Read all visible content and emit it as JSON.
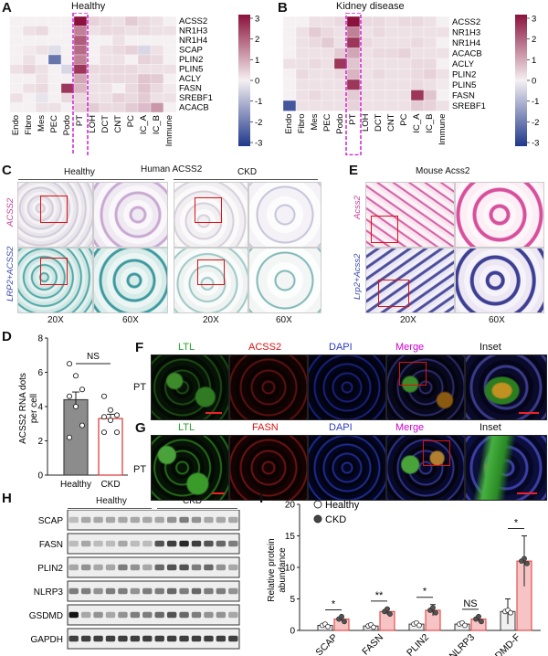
{
  "panelA": {
    "label": "A",
    "title": "Healthy",
    "rows": [
      "ACSS2",
      "NR1H3",
      "NR1H4",
      "SCAP",
      "PLIN2",
      "PLIN5",
      "ACLY",
      "FASN",
      "SREBF1",
      "ACACB"
    ],
    "cols": [
      "Endo",
      "Fibro",
      "Mes",
      "PEC",
      "Podo",
      "PT",
      "LOH",
      "DCT",
      "CNT",
      "PC",
      "IC_A",
      "IC_B",
      "Immune"
    ],
    "values": [
      [
        0,
        0,
        0,
        0,
        0,
        3,
        0.4,
        0.3,
        0.2,
        0.5,
        0.3,
        0.2,
        0
      ],
      [
        0,
        0.2,
        0.3,
        0,
        0,
        1.5,
        0.2,
        0.3,
        0.3,
        0.2,
        0.3,
        0.2,
        0.2
      ],
      [
        0,
        0,
        0,
        0,
        0,
        2,
        0,
        0,
        0.2,
        0,
        0,
        0,
        0
      ],
      [
        0,
        0.1,
        0.2,
        -0.3,
        0,
        1.8,
        0,
        0.2,
        0.3,
        0.4,
        -0.4,
        0.2,
        0
      ],
      [
        0,
        0.2,
        0,
        -2,
        0,
        1.5,
        0,
        0.2,
        0.2,
        0,
        0.4,
        0.3,
        0
      ],
      [
        0.2,
        0.4,
        0.2,
        0,
        -0.4,
        2.5,
        0.3,
        0.3,
        0.3,
        0.3,
        0.2,
        0.2,
        0.2
      ],
      [
        0,
        0,
        0.2,
        0,
        0,
        1,
        0.2,
        0.3,
        0.3,
        0.3,
        0.6,
        0.5,
        0
      ],
      [
        0,
        0.2,
        0.3,
        0,
        2.5,
        0.8,
        0.2,
        0.2,
        0,
        0.3,
        0.6,
        0.3,
        0.1
      ],
      [
        0.2,
        0,
        -0.2,
        0,
        0.3,
        0.3,
        0.2,
        0.2,
        0.4,
        0.3,
        0.5,
        0.2,
        0.2
      ],
      [
        0,
        0,
        0.2,
        0.2,
        0,
        0.4,
        0.5,
        0.3,
        0.3,
        0.5,
        0.7,
        1.2,
        0
      ]
    ],
    "scale_ticks": [
      "3",
      "2",
      "1",
      "0",
      "-1",
      "-2",
      "-3"
    ]
  },
  "panelB": {
    "label": "B",
    "title": "Kidney disease",
    "rows": [
      "ACSS2",
      "NR1H3",
      "NR1H4",
      "ACACB",
      "ACLY",
      "PLIN2",
      "PLIN5",
      "FASN",
      "SREBF1"
    ],
    "cols": [
      "Endo",
      "Fibro",
      "Mes",
      "PEC",
      "Podo",
      "PT",
      "LOH",
      "DCT",
      "CNT",
      "PC",
      "IC_A",
      "IC_B",
      "Immune"
    ],
    "values": [
      [
        0,
        0,
        0.2,
        0.2,
        0.3,
        3,
        0.3,
        0.3,
        0.2,
        0.3,
        0.3,
        0.2,
        0
      ],
      [
        0,
        0.2,
        0.5,
        0.3,
        0.2,
        1.5,
        0.2,
        0.3,
        0.2,
        0.2,
        0.2,
        0.2,
        0.2
      ],
      [
        0,
        0.2,
        0.3,
        0.5,
        0.2,
        2.5,
        0.3,
        0.2,
        0.2,
        0.2,
        0.3,
        0.2,
        0
      ],
      [
        0,
        0.2,
        0.2,
        0.2,
        0.5,
        1,
        0.2,
        0.3,
        0.3,
        0.4,
        0.2,
        0.2,
        0.2
      ],
      [
        0.2,
        0.2,
        0.3,
        0.2,
        2.5,
        0.6,
        0.2,
        0.2,
        0.2,
        0.2,
        0.3,
        0.3,
        0
      ],
      [
        0,
        0.3,
        0.2,
        0.2,
        0.3,
        0.8,
        0.2,
        0.3,
        0.2,
        0.2,
        0.3,
        0.4,
        0.2
      ],
      [
        0,
        0.2,
        0.2,
        0.2,
        0.2,
        2.5,
        0.2,
        0.2,
        0.2,
        0.2,
        0.3,
        0.2,
        0.1
      ],
      [
        0,
        0.2,
        0.3,
        0.2,
        0.2,
        0.5,
        0.2,
        0.2,
        0.2,
        0.2,
        2.5,
        0.6,
        0
      ],
      [
        -2.5,
        0.2,
        0.2,
        0.2,
        0.2,
        0.4,
        0.2,
        0.2,
        0.2,
        0.2,
        0.5,
        0.4,
        0.2
      ]
    ],
    "scale_ticks": [
      "3",
      "2",
      "1",
      "0",
      "-1",
      "-2",
      "-3"
    ]
  },
  "panelC": {
    "label": "C",
    "header_left": "Healthy",
    "header_center": "Human ACSS2",
    "header_right": "CKD",
    "row1_label": "ACSS2",
    "row2_label": "LRP2+ACSS2",
    "mag": [
      "20X",
      "60X",
      "20X",
      "60X"
    ]
  },
  "panelE": {
    "label": "E",
    "header": "Mouse Acss2",
    "row1_label": "Acss2",
    "row2_label": "Lrp2+Acss2",
    "mag": [
      "20X",
      "60X"
    ]
  },
  "panelD": {
    "label": "D",
    "ylabel": "ACSS2 RNA dots per cell",
    "sig": "NS",
    "chart_data": {
      "type": "bar",
      "categories": [
        "Healthy",
        "CKD"
      ],
      "values": [
        4.4,
        3.3
      ],
      "errors": [
        0.45,
        0.25
      ],
      "ylim": [
        0,
        8
      ],
      "yticks": [
        "0",
        "2",
        "4",
        "6",
        "8"
      ],
      "points": [
        [
          6.5,
          5.8,
          5,
          4.6,
          4,
          2.9,
          2.2
        ],
        [
          4.6,
          3.8,
          3.5,
          3.4,
          3.2,
          2.5,
          2.5
        ]
      ]
    }
  },
  "panelF": {
    "label": "F",
    "row_label": "PT",
    "cols": [
      "LTL",
      "ACSS2",
      "DAPI",
      "Merge",
      "Inset"
    ]
  },
  "panelG": {
    "label": "G",
    "row_label": "PT",
    "cols": [
      "LTL",
      "FASN",
      "DAPI",
      "Merge",
      "Inset"
    ]
  },
  "panelH": {
    "label": "H",
    "group_healthy": "Healthy",
    "group_ckd": "CKD",
    "bands": [
      "SCAP",
      "FASN",
      "PLIN2",
      "NLRP3",
      "GSDMD",
      "GAPDH"
    ]
  },
  "panelI": {
    "label": "I",
    "ylabel": "Relative protein abundance",
    "legend": [
      "Healthy",
      "CKD"
    ],
    "chart_data": {
      "type": "bar",
      "categories": [
        "SCAP",
        "FASN",
        "PLIN2",
        "NLRP3",
        "GSDMD-F"
      ],
      "series": [
        {
          "name": "Healthy",
          "values": [
            0.8,
            0.7,
            1.0,
            1.0,
            3.0
          ],
          "errors": [
            0.15,
            0.15,
            0.2,
            0.2,
            2.0
          ]
        },
        {
          "name": "CKD",
          "values": [
            1.8,
            3.0,
            3.2,
            1.8,
            11.0
          ],
          "errors": [
            0.3,
            0.5,
            0.9,
            0.4,
            4.0
          ]
        }
      ],
      "ylim": [
        0,
        20
      ],
      "yticks": [
        "0",
        "5",
        "10",
        "15",
        "20"
      ],
      "sig": [
        "*",
        "**",
        "*",
        "NS",
        "*"
      ]
    }
  }
}
